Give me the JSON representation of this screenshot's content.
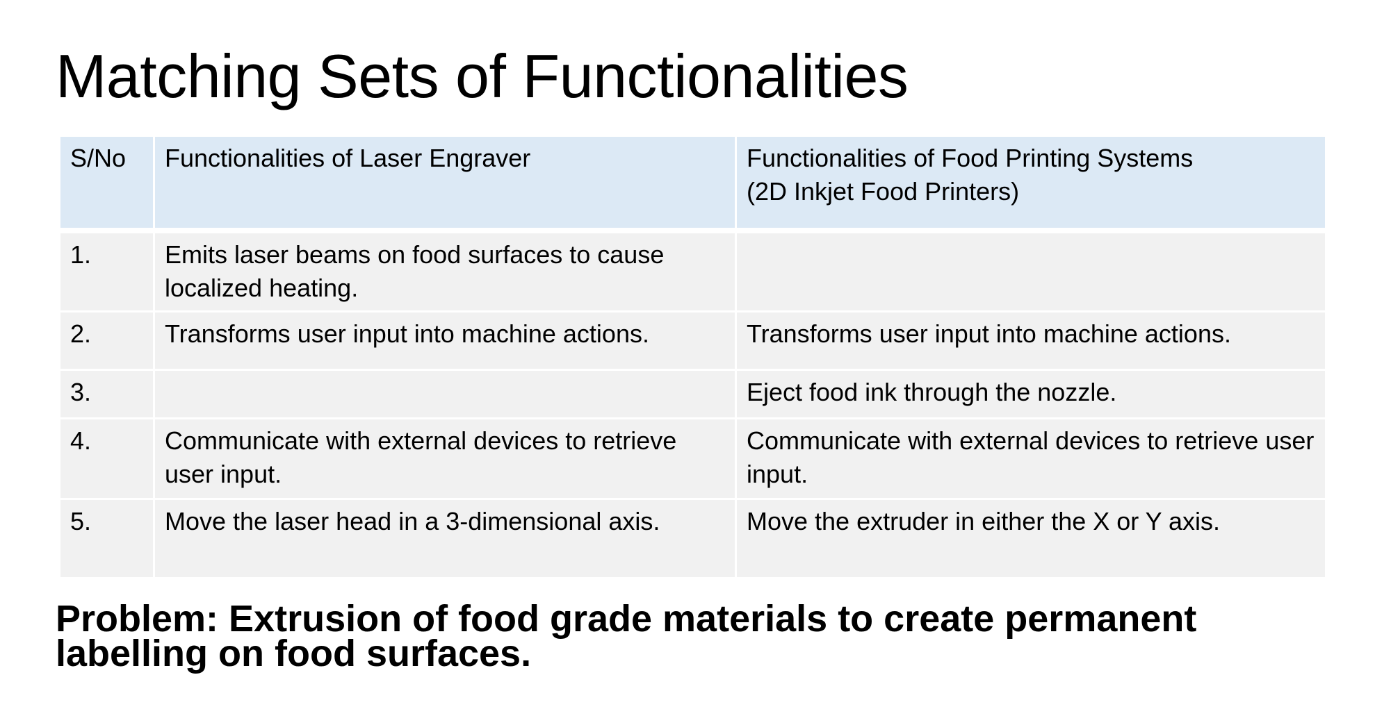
{
  "slide": {
    "title": "Matching Sets of Functionalities",
    "table": {
      "headers": {
        "sno": "S/No",
        "laser": "Functionalities of Laser Engraver",
        "food_line1": "Functionalities of Food Printing Systems",
        "food_line2": "(2D Inkjet Food Printers)"
      },
      "rows": [
        {
          "sno": "1.",
          "laser": "Emits laser beams on food surfaces to cause localized heating.",
          "food": ""
        },
        {
          "sno": "2.",
          "laser": "Transforms user input into machine actions.",
          "food": "Transforms user input into machine actions."
        },
        {
          "sno": "3.",
          "laser": "",
          "food": "Eject food ink through the nozzle."
        },
        {
          "sno": "4.",
          "laser": "Communicate with external devices to retrieve user input.",
          "food": "Communicate with external devices to retrieve user input."
        },
        {
          "sno": "5.",
          "laser": "Move the laser head in a 3-dimensional axis.",
          "food": "Move the extruder in either the X or Y axis."
        }
      ]
    },
    "problem": "Problem: Extrusion of food grade materials to create permanent labelling on food surfaces."
  }
}
